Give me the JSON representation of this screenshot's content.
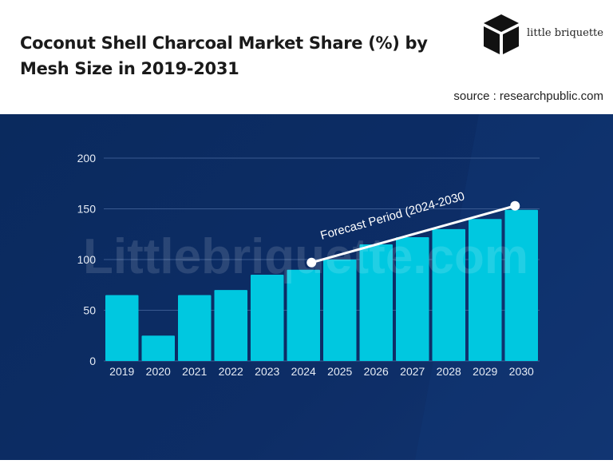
{
  "header": {
    "title": "Coconut Shell Charcoal Market Share (%) by Mesh Size in 2019-2031",
    "source": "source : researchpublic.com",
    "logo_text": "little briquette"
  },
  "watermark": "Littlebriquette.com",
  "colors": {
    "background": "#0b2b60",
    "bar": "#00c8e0",
    "grid": "#3a5a90",
    "annotation": "#ffffff"
  },
  "chart_data": {
    "type": "bar",
    "title": "Coconut Shell Charcoal Market Share (%) by Mesh Size in 2019-2031",
    "categories": [
      "2019",
      "2020",
      "2021",
      "2022",
      "2023",
      "2024",
      "2025",
      "2026",
      "2027",
      "2028",
      "2029",
      "2030"
    ],
    "values": [
      65,
      25,
      65,
      70,
      85,
      90,
      100,
      115,
      122,
      130,
      140,
      149
    ],
    "ylim": [
      0,
      200
    ],
    "yticks": [
      0,
      50,
      100,
      150,
      200
    ],
    "grid": true,
    "xlabel": "",
    "ylabel": "",
    "annotation": {
      "text": "Forecast Period (2024-2030",
      "from": {
        "x": "2024",
        "y": 97
      },
      "to": {
        "x": "2030",
        "y": 153
      }
    }
  }
}
